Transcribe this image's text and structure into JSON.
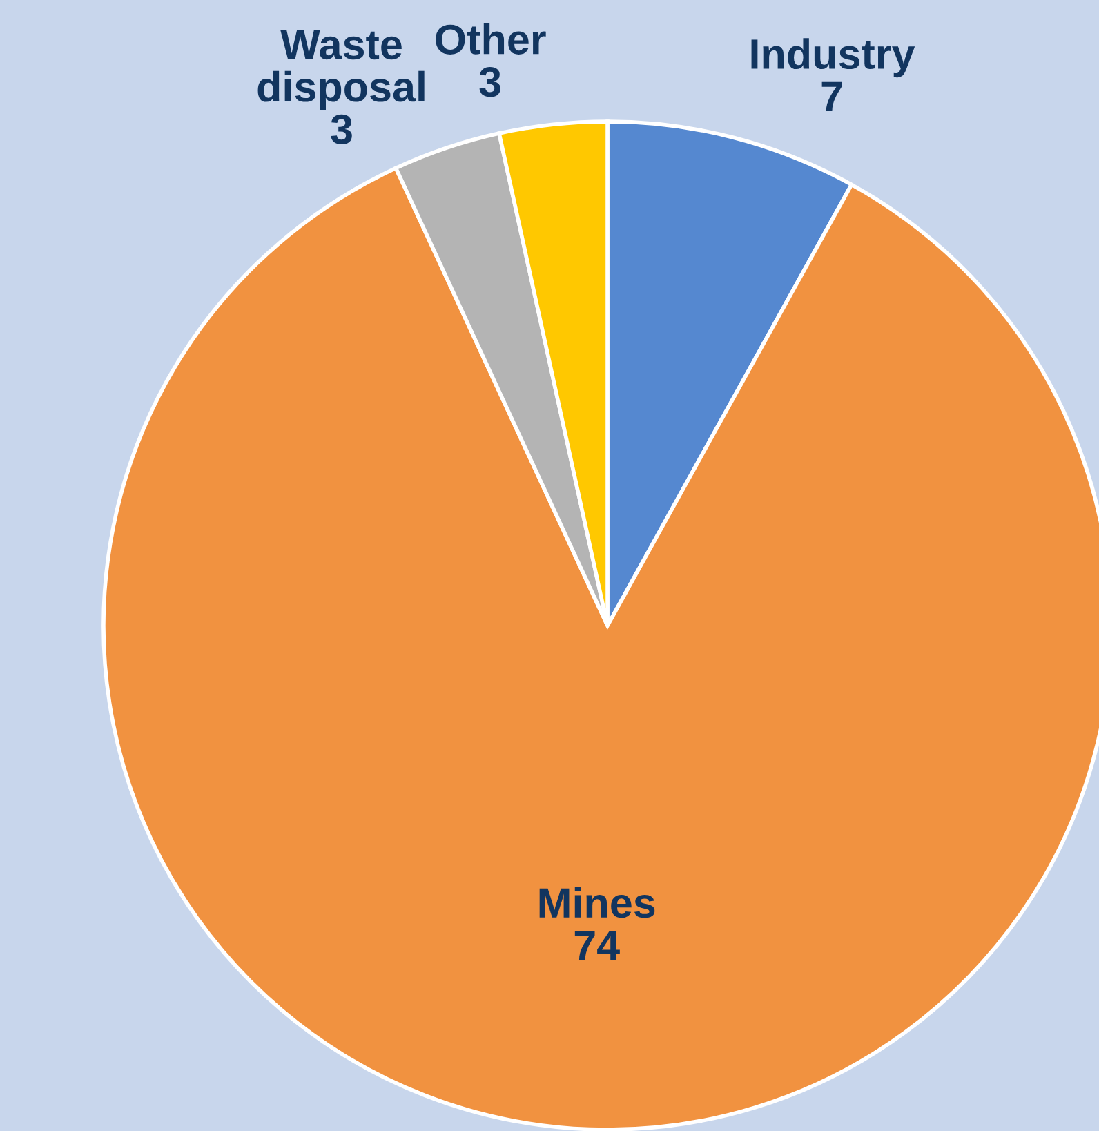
{
  "chart_data": {
    "type": "pie",
    "categories": [
      "Industry",
      "Mines",
      "Waste disposal",
      "Other"
    ],
    "values": [
      7,
      74,
      3,
      3
    ],
    "colors": [
      "#5588d0",
      "#f19240",
      "#b4b4b4",
      "#ffc800"
    ],
    "data_labels": true,
    "legend": false
  }
}
